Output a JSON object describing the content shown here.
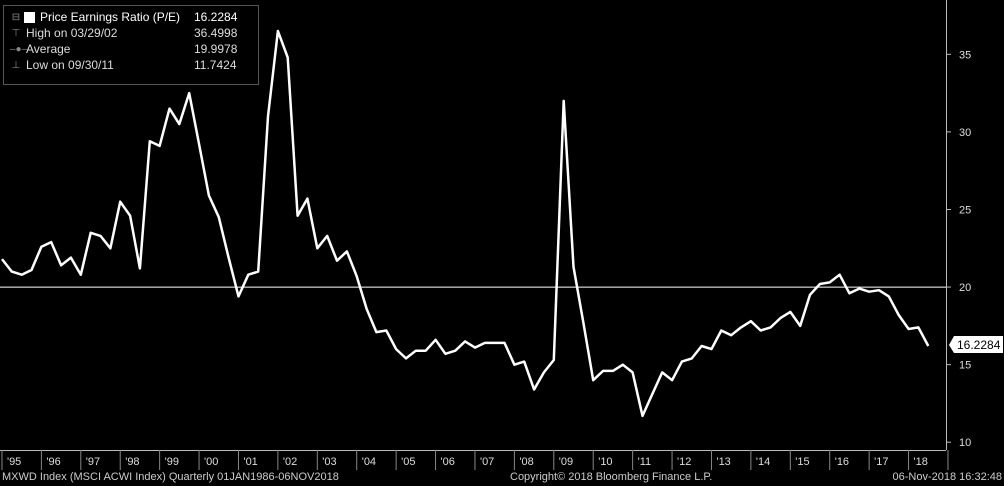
{
  "legend": {
    "series_label": "Price Earnings Ratio (P/E)",
    "series_value": "16.2284",
    "high_label": "High on 03/29/02",
    "high_value": "36.4998",
    "avg_label": "Average",
    "avg_value": "19.9978",
    "low_label": "Low on 09/30/11",
    "low_value": "11.7424"
  },
  "last_value_tag": "16.2284",
  "footer": {
    "index": "MXWD Index (MSCI ACWI Index)  Quarterly 01JAN1986-06NOV2018",
    "copyright": "Copyright© 2018 Bloomberg Finance L.P.",
    "timestamp": "06-Nov-2018 16:32:48"
  },
  "colors": {
    "background": "#000000",
    "line": "#ffffff",
    "average_line": "#ffffff"
  },
  "chart_data": {
    "type": "line",
    "x_tick_labels": [
      "'95",
      "'96",
      "'97",
      "'98",
      "'99",
      "'00",
      "'01",
      "'02",
      "'03",
      "'04",
      "'05",
      "'06",
      "'07",
      "'08",
      "'09",
      "'10",
      "'11",
      "'12",
      "'13",
      "'14",
      "'15",
      "'16",
      "'17",
      "'18"
    ],
    "y_ticks": [
      10,
      15,
      20,
      25,
      30,
      35
    ],
    "ylim": [
      9.5,
      38.5
    ],
    "xlim": [
      1994.95,
      2018.95
    ],
    "average": 19.9978,
    "grid": false,
    "legend_position": "top-left",
    "series": [
      {
        "name": "Price Earnings Ratio (P/E)",
        "x": [
          1995.0,
          1995.25,
          1995.5,
          1995.75,
          1996.0,
          1996.25,
          1996.5,
          1996.75,
          1997.0,
          1997.25,
          1997.5,
          1997.75,
          1998.0,
          1998.25,
          1998.5,
          1998.75,
          1999.0,
          1999.25,
          1999.5,
          1999.75,
          2000.0,
          2000.25,
          2000.5,
          2000.75,
          2001.0,
          2001.25,
          2001.5,
          2001.75,
          2002.0,
          2002.25,
          2002.5,
          2002.75,
          2003.0,
          2003.25,
          2003.5,
          2003.75,
          2004.0,
          2004.25,
          2004.5,
          2004.75,
          2005.0,
          2005.25,
          2005.5,
          2005.75,
          2006.0,
          2006.25,
          2006.5,
          2006.75,
          2007.0,
          2007.25,
          2007.5,
          2007.75,
          2008.0,
          2008.25,
          2008.5,
          2008.75,
          2009.0,
          2009.25,
          2009.5,
          2009.75,
          2010.0,
          2010.25,
          2010.5,
          2010.75,
          2011.0,
          2011.25,
          2011.5,
          2011.75,
          2012.0,
          2012.25,
          2012.5,
          2012.75,
          2013.0,
          2013.25,
          2013.5,
          2013.75,
          2014.0,
          2014.25,
          2014.5,
          2014.75,
          2015.0,
          2015.25,
          2015.5,
          2015.75,
          2016.0,
          2016.25,
          2016.5,
          2016.75,
          2017.0,
          2017.25,
          2017.5,
          2017.75,
          2018.0,
          2018.25,
          2018.5
        ],
        "y": [
          21.8,
          21.0,
          20.8,
          21.1,
          22.6,
          22.9,
          21.4,
          21.9,
          20.8,
          23.5,
          23.3,
          22.5,
          25.5,
          24.6,
          21.2,
          29.4,
          29.1,
          31.5,
          30.5,
          32.5,
          29.2,
          25.9,
          24.5,
          21.9,
          19.4,
          20.8,
          21.0,
          31.0,
          36.5,
          34.8,
          24.6,
          25.7,
          22.5,
          23.3,
          21.7,
          22.3,
          20.7,
          18.6,
          17.1,
          17.2,
          16.0,
          15.4,
          15.9,
          15.9,
          16.6,
          15.7,
          15.9,
          16.5,
          16.1,
          16.4,
          16.4,
          16.4,
          15.0,
          15.2,
          13.4,
          14.5,
          15.3,
          32.0,
          21.3,
          17.7,
          14.0,
          14.6,
          14.6,
          15.0,
          14.5,
          11.7,
          13.1,
          14.5,
          14.0,
          15.2,
          15.4,
          16.2,
          16.0,
          17.2,
          16.9,
          17.4,
          17.8,
          17.2,
          17.4,
          18.0,
          18.4,
          17.5,
          19.5,
          20.2,
          20.3,
          20.8,
          19.6,
          19.9,
          19.7,
          19.8,
          19.4,
          18.2,
          17.3,
          17.4,
          16.2
        ]
      }
    ]
  }
}
